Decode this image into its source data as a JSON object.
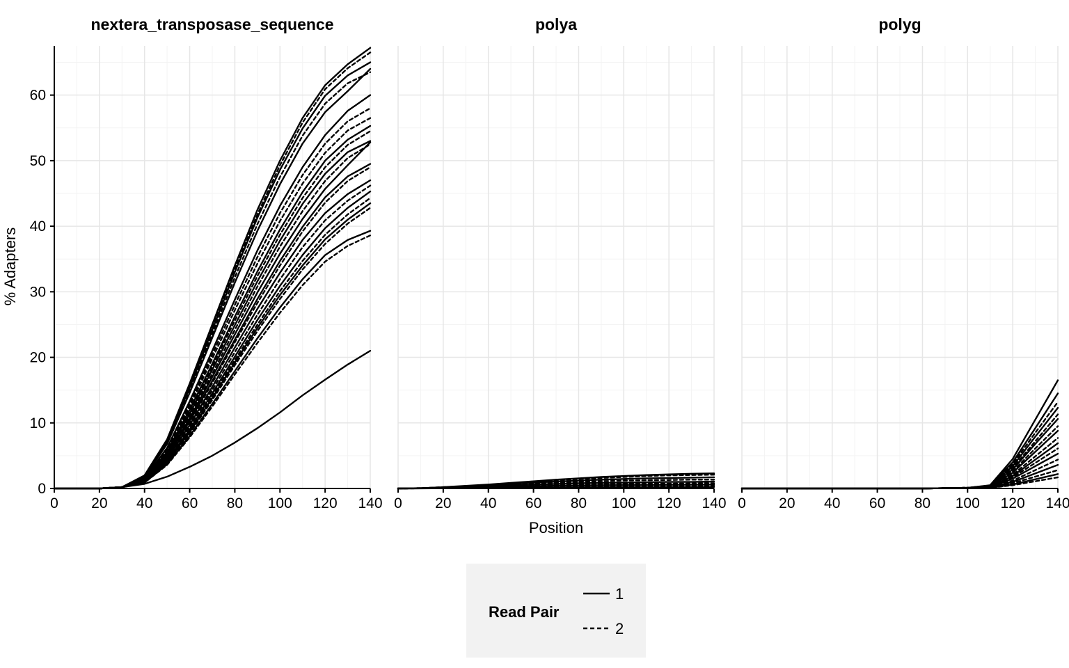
{
  "chart_data": {
    "type": "line",
    "xlabel": "Position",
    "ylabel": "% Adapters",
    "xlim": [
      0,
      140
    ],
    "ylim": [
      0,
      67.5
    ],
    "x_ticks": [
      0,
      20,
      40,
      60,
      80,
      100,
      120,
      140
    ],
    "y_ticks": [
      0,
      10,
      20,
      30,
      40,
      50,
      60
    ],
    "grid": true,
    "legend": {
      "title": "Read Pair",
      "position": "bottom",
      "entries": [
        {
          "label": "1",
          "linestyle": "solid"
        },
        {
          "label": "2",
          "linestyle": "dashed"
        }
      ]
    },
    "x": [
      0,
      10,
      20,
      30,
      40,
      50,
      60,
      70,
      80,
      90,
      100,
      110,
      120,
      130,
      140
    ],
    "panels": [
      {
        "title": "nextera_transposase_sequence",
        "series": [
          {
            "read_pair": "1",
            "values": [
              0,
              0,
              0,
              0.2,
              2.0,
              7.5,
              16.0,
              25.0,
              34.0,
              42.5,
              50.0,
              56.5,
              61.5,
              64.7,
              67.2
            ]
          },
          {
            "read_pair": "2",
            "values": [
              0,
              0,
              0,
              0.2,
              1.9,
              7.3,
              15.6,
              24.5,
              33.4,
              41.8,
              49.3,
              55.8,
              60.9,
              64.1,
              66.5
            ]
          },
          {
            "read_pair": "1",
            "values": [
              0,
              0,
              0,
              0.2,
              1.9,
              7.2,
              15.4,
              24.2,
              33.0,
              41.3,
              48.6,
              54.9,
              59.9,
              63.0,
              65.0
            ]
          },
          {
            "read_pair": "2",
            "values": [
              0,
              0,
              0,
              0.2,
              1.8,
              7.0,
              15.0,
              23.6,
              32.2,
              40.3,
              47.5,
              53.8,
              58.7,
              61.8,
              63.5
            ]
          },
          {
            "read_pair": "1",
            "values": [
              0,
              0,
              0,
              0.2,
              1.8,
              6.8,
              14.6,
              23.0,
              31.4,
              39.3,
              46.4,
              52.6,
              57.4,
              60.6,
              64.0
            ]
          },
          {
            "read_pair": "1",
            "values": [
              0,
              0,
              0,
              0.2,
              1.6,
              6.2,
              13.3,
              21.0,
              28.8,
              36.3,
              43.1,
              49.0,
              53.9,
              57.6,
              60.0
            ]
          },
          {
            "read_pair": "2",
            "values": [
              0,
              0,
              0,
              0.2,
              1.6,
              6.0,
              12.9,
              20.4,
              28.0,
              35.3,
              42.0,
              47.8,
              52.6,
              56.0,
              58.0
            ]
          },
          {
            "read_pair": "2",
            "values": [
              0,
              0,
              0,
              0.2,
              1.5,
              5.8,
              12.5,
              19.8,
              27.2,
              34.3,
              40.8,
              46.5,
              51.2,
              54.6,
              56.5
            ]
          },
          {
            "read_pair": "1",
            "values": [
              0,
              0,
              0,
              0.2,
              1.5,
              5.6,
              12.0,
              19.0,
              26.2,
              33.1,
              39.5,
              45.2,
              50.0,
              53.2,
              55.3
            ]
          },
          {
            "read_pair": "2",
            "values": [
              0,
              0,
              0,
              0.2,
              1.4,
              5.4,
              11.7,
              18.6,
              25.6,
              32.4,
              38.7,
              44.3,
              49.0,
              52.4,
              54.5
            ]
          },
          {
            "read_pair": "1",
            "values": [
              0,
              0,
              0,
              0.2,
              1.4,
              5.3,
              11.4,
              18.1,
              24.9,
              31.6,
              37.8,
              43.4,
              48.0,
              51.3,
              53.0
            ]
          },
          {
            "read_pair": "2",
            "values": [
              0,
              0,
              0,
              0.2,
              1.3,
              5.1,
              11.0,
              17.5,
              24.2,
              30.8,
              36.9,
              42.3,
              46.9,
              50.4,
              52.5
            ]
          },
          {
            "read_pair": "1",
            "values": [
              0,
              0,
              0,
              0.2,
              1.3,
              5.0,
              10.7,
              17.0,
              23.5,
              29.9,
              35.8,
              41.1,
              45.7,
              49.3,
              52.8
            ]
          },
          {
            "read_pair": "1",
            "values": [
              0,
              0,
              0,
              0.2,
              1.2,
              4.8,
              10.3,
              16.4,
              22.7,
              28.9,
              34.7,
              39.9,
              44.4,
              47.6,
              49.5
            ]
          },
          {
            "read_pair": "2",
            "values": [
              0,
              0,
              0,
              0.2,
              1.2,
              4.7,
              10.1,
              16.1,
              22.3,
              28.3,
              34.0,
              39.2,
              43.6,
              46.9,
              49.0
            ]
          },
          {
            "read_pair": "1",
            "values": [
              0,
              0,
              0,
              0.2,
              1.1,
              4.5,
              9.7,
              15.5,
              21.5,
              27.4,
              32.9,
              37.9,
              42.0,
              44.9,
              47.0
            ]
          },
          {
            "read_pair": "2",
            "values": [
              0,
              0,
              0,
              0.2,
              1.1,
              4.4,
              9.4,
              15.0,
              20.8,
              26.5,
              31.9,
              36.8,
              40.9,
              43.9,
              46.2
            ]
          },
          {
            "read_pair": "1",
            "values": [
              0,
              0,
              0,
              0.2,
              1.0,
              4.2,
              9.0,
              14.5,
              20.1,
              25.7,
              30.9,
              35.6,
              39.7,
              42.8,
              45.3
            ]
          },
          {
            "read_pair": "2",
            "values": [
              0,
              0,
              0,
              0.2,
              1.0,
              4.1,
              8.8,
              14.1,
              19.6,
              25.0,
              30.1,
              34.7,
              38.7,
              41.8,
              44.3
            ]
          },
          {
            "read_pair": "1",
            "values": [
              0,
              0,
              0,
              0.2,
              1.0,
              4.0,
              8.6,
              13.8,
              19.2,
              24.5,
              29.5,
              34.0,
              38.0,
              41.0,
              43.5
            ]
          },
          {
            "read_pair": "2",
            "values": [
              0,
              0,
              0,
              0.2,
              0.9,
              3.9,
              8.4,
              13.5,
              18.8,
              24.0,
              28.9,
              33.4,
              37.3,
              40.4,
              42.8
            ]
          },
          {
            "read_pair": "1",
            "values": [
              0,
              0,
              0,
              0.2,
              0.9,
              3.7,
              8.0,
              12.9,
              17.9,
              22.9,
              27.6,
              31.9,
              35.6,
              37.9,
              39.3
            ]
          },
          {
            "read_pair": "2",
            "values": [
              0,
              0,
              0,
              0.2,
              0.9,
              3.6,
              7.8,
              12.5,
              17.4,
              22.2,
              26.8,
              31.0,
              34.6,
              37.0,
              38.6
            ]
          },
          {
            "read_pair": "1",
            "values": [
              0,
              0,
              0,
              0.2,
              0.7,
              1.8,
              3.3,
              5.0,
              7.0,
              9.2,
              11.6,
              14.2,
              16.6,
              18.9,
              21.0
            ]
          }
        ]
      },
      {
        "title": "polya",
        "series": [
          {
            "read_pair": "1",
            "values": [
              0,
              0.05,
              0.2,
              0.4,
              0.6,
              0.85,
              1.1,
              1.35,
              1.55,
              1.75,
              1.9,
              2.05,
              2.15,
              2.25,
              2.3
            ]
          },
          {
            "read_pair": "2",
            "values": [
              0,
              0.05,
              0.2,
              0.35,
              0.55,
              0.8,
              1.0,
              1.25,
              1.45,
              1.6,
              1.75,
              1.9,
              2.0,
              2.05,
              2.1
            ]
          },
          {
            "read_pair": "1",
            "values": [
              0,
              0.05,
              0.15,
              0.3,
              0.5,
              0.7,
              0.9,
              1.05,
              1.2,
              1.35,
              1.45,
              1.55,
              1.6,
              1.65,
              1.7
            ]
          },
          {
            "read_pair": "2",
            "values": [
              0,
              0.05,
              0.15,
              0.3,
              0.45,
              0.6,
              0.75,
              0.9,
              1.0,
              1.1,
              1.2,
              1.25,
              1.3,
              1.35,
              1.35
            ]
          },
          {
            "read_pair": "1",
            "values": [
              0,
              0.05,
              0.1,
              0.25,
              0.35,
              0.5,
              0.6,
              0.7,
              0.8,
              0.85,
              0.9,
              0.95,
              1.0,
              1.0,
              1.05
            ]
          },
          {
            "read_pair": "2",
            "values": [
              0,
              0.03,
              0.1,
              0.2,
              0.3,
              0.4,
              0.5,
              0.55,
              0.6,
              0.65,
              0.7,
              0.72,
              0.75,
              0.77,
              0.8
            ]
          },
          {
            "read_pair": "1",
            "values": [
              0,
              0.02,
              0.08,
              0.15,
              0.22,
              0.3,
              0.36,
              0.42,
              0.46,
              0.5,
              0.53,
              0.55,
              0.57,
              0.58,
              0.6
            ]
          },
          {
            "read_pair": "2",
            "values": [
              0,
              0.02,
              0.05,
              0.1,
              0.15,
              0.2,
              0.24,
              0.28,
              0.31,
              0.33,
              0.35,
              0.37,
              0.38,
              0.39,
              0.4
            ]
          },
          {
            "read_pair": "1",
            "values": [
              0,
              0.01,
              0.03,
              0.06,
              0.09,
              0.12,
              0.14,
              0.16,
              0.18,
              0.19,
              0.2,
              0.21,
              0.22,
              0.22,
              0.23
            ]
          }
        ]
      },
      {
        "title": "polyg",
        "series": [
          {
            "read_pair": "1",
            "values": [
              0,
              0,
              0,
              0,
              0,
              0,
              0,
              0,
              0,
              0.05,
              0.1,
              0.5,
              4.5,
              10.5,
              16.5
            ]
          },
          {
            "read_pair": "1",
            "values": [
              0,
              0,
              0,
              0,
              0,
              0,
              0,
              0,
              0,
              0.05,
              0.1,
              0.45,
              4.0,
              9.2,
              14.5
            ]
          },
          {
            "read_pair": "2",
            "values": [
              0,
              0,
              0,
              0,
              0,
              0,
              0,
              0,
              0,
              0.05,
              0.1,
              0.4,
              3.7,
              8.5,
              13.2
            ]
          },
          {
            "read_pair": "1",
            "values": [
              0,
              0,
              0,
              0,
              0,
              0,
              0,
              0,
              0,
              0.05,
              0.1,
              0.4,
              3.4,
              7.9,
              12.3
            ]
          },
          {
            "read_pair": "2",
            "values": [
              0,
              0,
              0,
              0,
              0,
              0,
              0,
              0,
              0,
              0.05,
              0.1,
              0.35,
              3.1,
              7.2,
              11.3
            ]
          },
          {
            "read_pair": "1",
            "values": [
              0,
              0,
              0,
              0,
              0,
              0,
              0,
              0,
              0,
              0.05,
              0.1,
              0.35,
              2.9,
              6.8,
              10.6
            ]
          },
          {
            "read_pair": "2",
            "values": [
              0,
              0,
              0,
              0,
              0,
              0,
              0,
              0,
              0,
              0.05,
              0.1,
              0.3,
              2.6,
              6.1,
              9.5
            ]
          },
          {
            "read_pair": "1",
            "values": [
              0,
              0,
              0,
              0,
              0,
              0,
              0,
              0,
              0,
              0.05,
              0.1,
              0.3,
              2.4,
              5.6,
              8.8
            ]
          },
          {
            "read_pair": "2",
            "values": [
              0,
              0,
              0,
              0,
              0,
              0,
              0,
              0,
              0,
              0.05,
              0.1,
              0.25,
              2.1,
              4.9,
              7.7
            ]
          },
          {
            "read_pair": "1",
            "values": [
              0,
              0,
              0,
              0,
              0,
              0,
              0,
              0,
              0,
              0.05,
              0.1,
              0.25,
              1.9,
              4.4,
              6.9
            ]
          },
          {
            "read_pair": "2",
            "values": [
              0,
              0,
              0,
              0,
              0,
              0,
              0,
              0,
              0,
              0.05,
              0.1,
              0.2,
              1.7,
              3.9,
              6.1
            ]
          },
          {
            "read_pair": "1",
            "values": [
              0,
              0,
              0,
              0,
              0,
              0,
              0,
              0,
              0,
              0.05,
              0.1,
              0.2,
              1.5,
              3.4,
              5.3
            ]
          },
          {
            "read_pair": "2",
            "values": [
              0,
              0,
              0,
              0,
              0,
              0,
              0,
              0,
              0,
              0.05,
              0.1,
              0.15,
              1.2,
              2.8,
              4.4
            ]
          },
          {
            "read_pair": "1",
            "values": [
              0,
              0,
              0,
              0,
              0,
              0,
              0,
              0,
              0,
              0.05,
              0.1,
              0.15,
              1.0,
              2.3,
              3.6
            ]
          },
          {
            "read_pair": "2",
            "values": [
              0,
              0,
              0,
              0,
              0,
              0,
              0,
              0,
              0,
              0.05,
              0.1,
              0.12,
              0.8,
              1.8,
              2.8
            ]
          },
          {
            "read_pair": "1",
            "values": [
              0,
              0,
              0,
              0,
              0,
              0,
              0,
              0,
              0,
              0.05,
              0.1,
              0.1,
              0.6,
              1.4,
              2.2
            ]
          },
          {
            "read_pair": "2",
            "values": [
              0,
              0,
              0,
              0,
              0,
              0,
              0,
              0,
              0,
              0.05,
              0.1,
              0.1,
              0.5,
              1.1,
              1.7
            ]
          }
        ]
      }
    ]
  },
  "colors": {
    "line": "#000000",
    "grid_major": "#e6e6e6",
    "grid_minor": "#f3f3f3",
    "axis": "#000000",
    "legend_background": "#f2f2f2"
  }
}
